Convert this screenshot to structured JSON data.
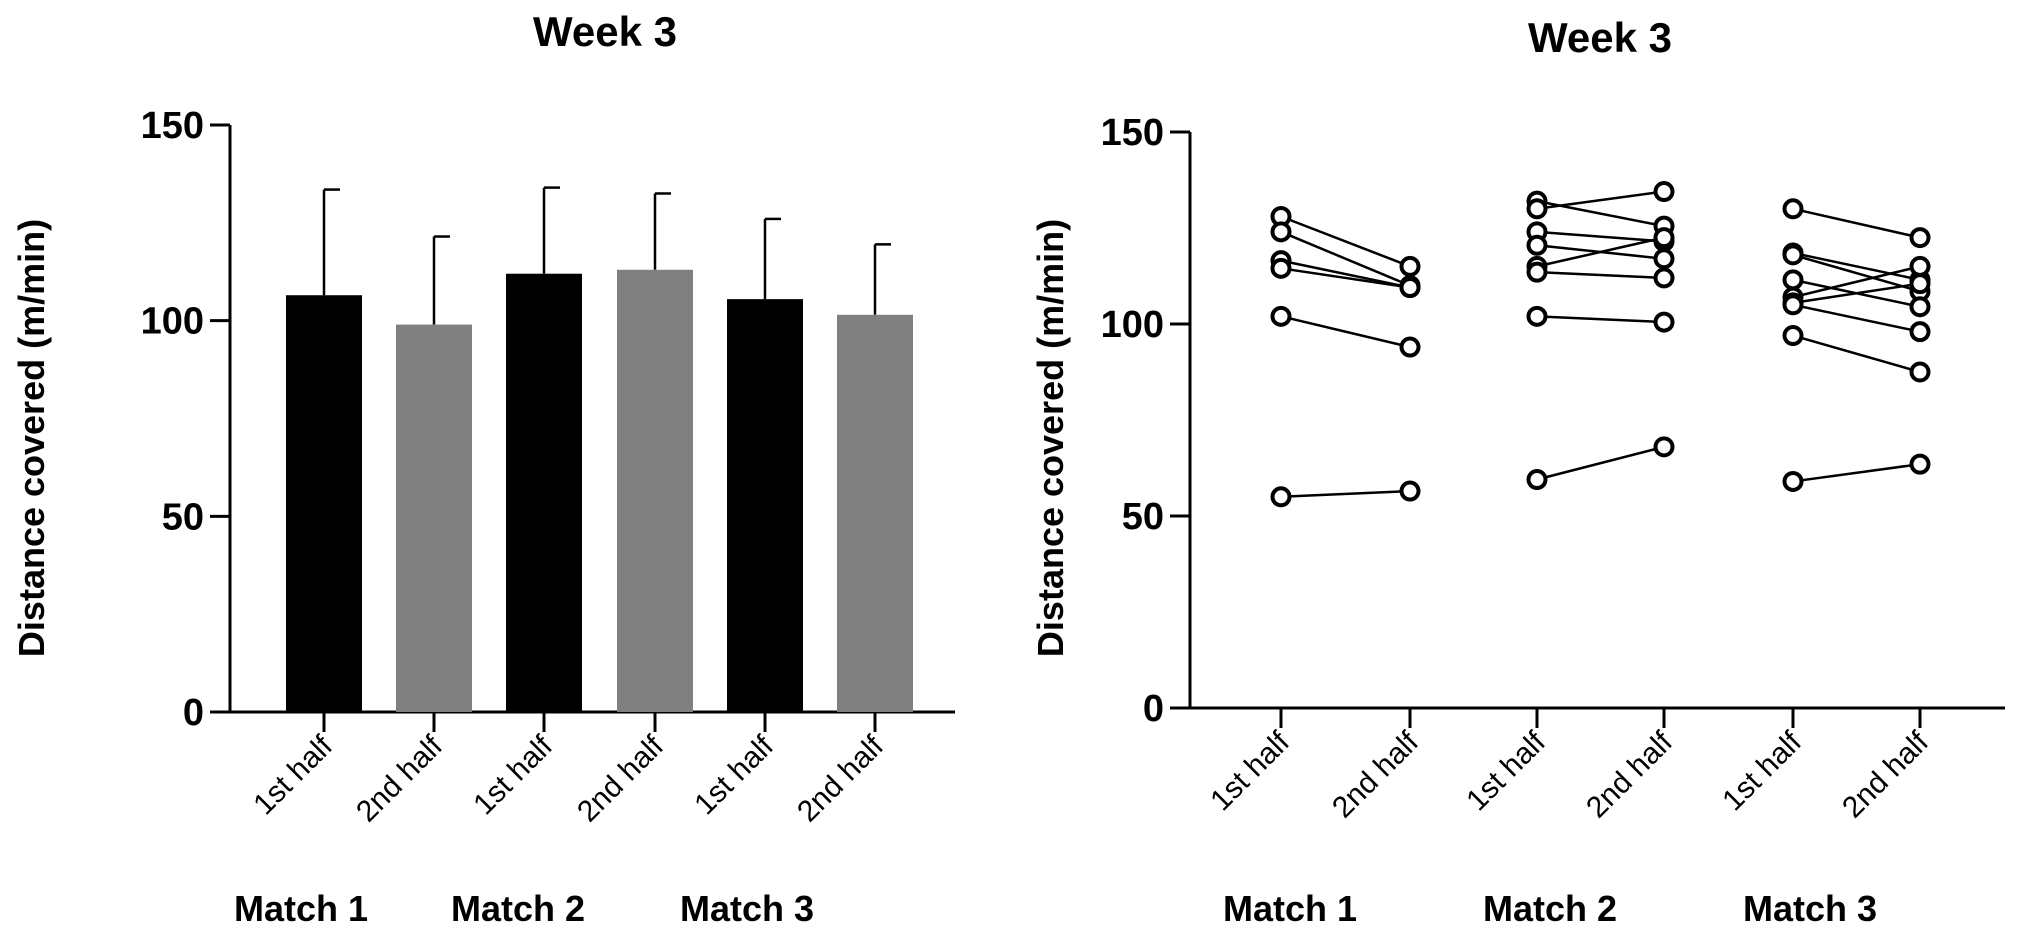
{
  "chart_data": [
    {
      "type": "bar",
      "title": "Week 3",
      "ylabel": "Distance covered (m/min)",
      "xlabel": "",
      "ylim": [
        0,
        150
      ],
      "yticks": [
        "0",
        "50",
        "100",
        "150"
      ],
      "grid": false,
      "categories": [
        "1st half",
        "2nd half",
        "1st half",
        "2nd half",
        "1st half",
        "2nd half"
      ],
      "groups": [
        "Match 1",
        "Match 2",
        "Match 3"
      ],
      "values": [
        106.5,
        99.0,
        112.0,
        113.0,
        105.5,
        101.5
      ],
      "error_upper": [
        133.5,
        121.5,
        134.0,
        132.5,
        126.0,
        119.5
      ],
      "colors": [
        "#000000",
        "#808080",
        "#000000",
        "#808080",
        "#000000",
        "#808080"
      ]
    },
    {
      "type": "line",
      "title": "Week 3",
      "ylabel": "Distance covered (m/min)",
      "xlabel": "",
      "ylim": [
        0,
        150
      ],
      "yticks": [
        "0",
        "50",
        "100",
        "150"
      ],
      "grid": false,
      "marker": "open-circle",
      "categories": [
        "1st half",
        "2nd half",
        "1st half",
        "2nd half",
        "1st half",
        "2nd half"
      ],
      "groups": [
        "Match 1",
        "Match 2",
        "Match 3"
      ],
      "pairs": [
        {
          "group": "Match 1",
          "lines": [
            [
              128,
              115
            ],
            [
              124,
              110
            ],
            [
              116.5,
              109.5
            ],
            [
              114.5,
              109.5
            ],
            [
              102,
              94
            ],
            [
              55,
              56.5
            ]
          ]
        },
        {
          "group": "Match 2",
          "lines": [
            [
              132,
              125.5
            ],
            [
              130,
              134.5
            ],
            [
              124,
              121.5
            ],
            [
              120.5,
              117
            ],
            [
              115,
              122.5
            ],
            [
              113.5,
              112
            ],
            [
              102,
              100.5
            ],
            [
              59.5,
              68
            ]
          ]
        },
        {
          "group": "Match 3",
          "lines": [
            [
              130,
              122.5
            ],
            [
              118.5,
              111.5
            ],
            [
              118,
              108.5
            ],
            [
              111.5,
              104.5
            ],
            [
              107,
              115
            ],
            [
              105.5,
              110.5
            ],
            [
              105,
              98
            ],
            [
              97,
              87.5
            ],
            [
              59,
              63.5
            ]
          ]
        }
      ]
    }
  ]
}
